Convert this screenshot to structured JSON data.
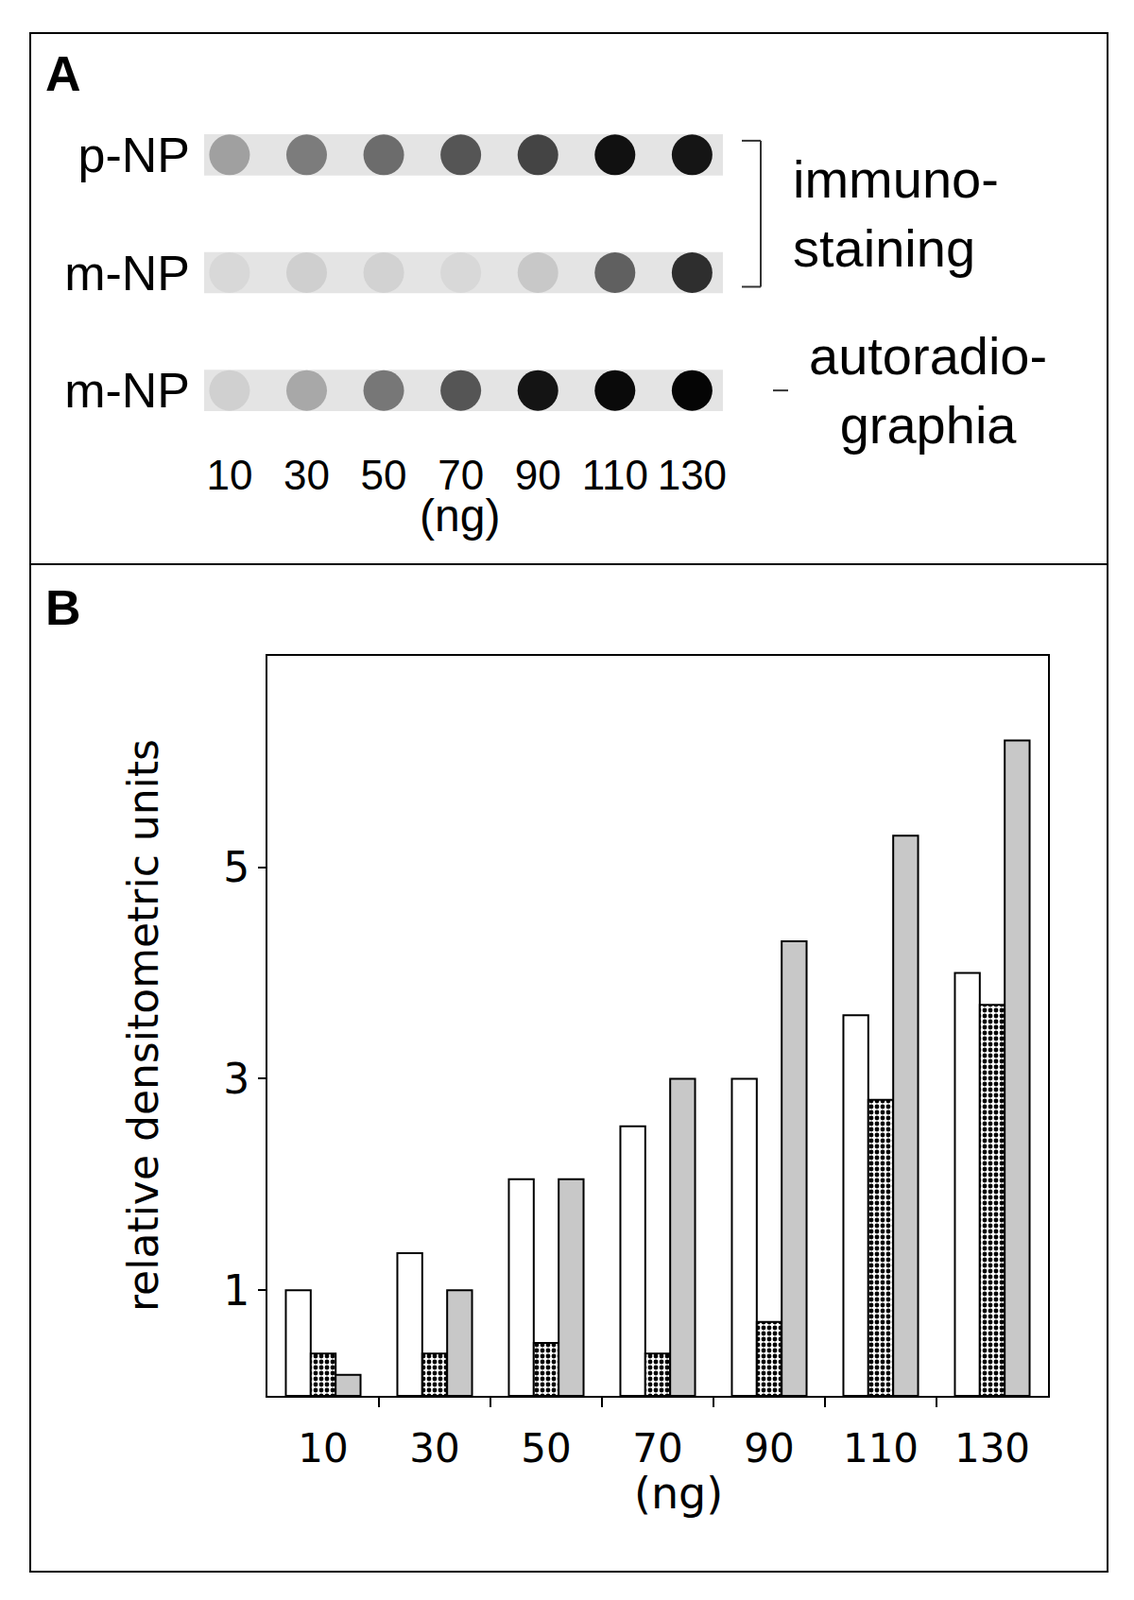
{
  "chart_data": [
    {
      "type": "dot_blot",
      "title": "A",
      "categories": [
        "10",
        "30",
        "50",
        "70",
        "90",
        "110",
        "130"
      ],
      "x_label": "(ng)",
      "series": [
        {
          "name": "p-NP",
          "colors": [
            "#a0a0a0",
            "#7c7c7c",
            "#6c6c6c",
            "#555555",
            "#444444",
            "#111111",
            "#151515"
          ]
        },
        {
          "name": "m-NP",
          "colors": [
            "#d8d8d8",
            "#cfcfcf",
            "#d2d2d2",
            "#d8d8d8",
            "#c8c8c8",
            "#606060",
            "#2e2e2e"
          ]
        },
        {
          "name": "m-NP",
          "colors": [
            "#d0d0d0",
            "#a8a8a8",
            "#777777",
            "#555555",
            "#141414",
            "#0a0a0a",
            "#050505"
          ]
        }
      ],
      "annotations": [
        {
          "text": [
            "immuno-",
            "staining"
          ]
        },
        {
          "text": [
            "autoradio-",
            "graphia"
          ]
        }
      ]
    },
    {
      "type": "bar",
      "title": "B",
      "categories": [
        "10",
        "30",
        "50",
        "70",
        "90",
        "110",
        "130"
      ],
      "x_label": "(ng)",
      "y_label": "relative densitometric units",
      "ylim": [
        0,
        7
      ],
      "yticks": [
        1,
        3,
        5
      ],
      "series": [
        {
          "color": "#ffffff",
          "values": [
            1.0,
            1.35,
            2.05,
            2.55,
            3.0,
            3.6,
            4.0
          ]
        },
        {
          "color": "#ffffff",
          "marker": "checkered",
          "values": [
            0.4,
            0.4,
            0.5,
            0.4,
            0.7,
            2.8,
            3.7
          ]
        },
        {
          "color": "#c8c8c8",
          "values": [
            0.2,
            1.0,
            2.05,
            3.0,
            4.3,
            5.3,
            6.2
          ]
        }
      ]
    }
  ]
}
